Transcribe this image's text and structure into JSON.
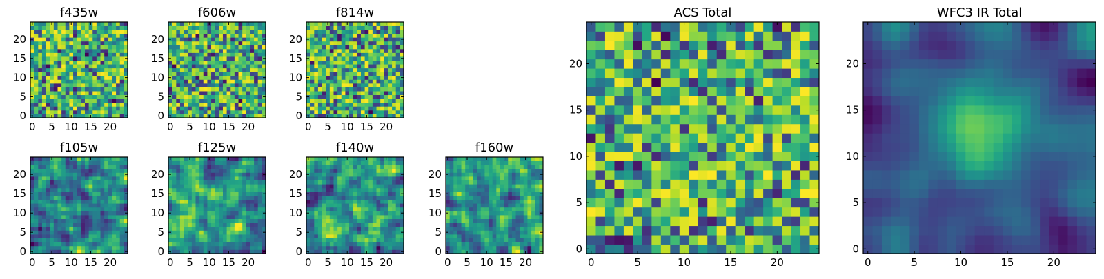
{
  "chart_data": [
    {
      "type": "heatmap",
      "title": "f435w",
      "n": 25,
      "xticks": [
        0,
        5,
        10,
        15,
        20
      ],
      "yticks": [
        0,
        5,
        10,
        15,
        20
      ],
      "xlim": [
        -0.5,
        24.5
      ],
      "ylim": [
        -0.5,
        24.5
      ],
      "pattern": "noise",
      "seed": 11,
      "colormap": "viridis"
    },
    {
      "type": "heatmap",
      "title": "f606w",
      "n": 25,
      "xticks": [
        0,
        5,
        10,
        15,
        20
      ],
      "yticks": [
        0,
        5,
        10,
        15,
        20
      ],
      "xlim": [
        -0.5,
        24.5
      ],
      "ylim": [
        -0.5,
        24.5
      ],
      "pattern": "noise",
      "seed": 23,
      "colormap": "viridis"
    },
    {
      "type": "heatmap",
      "title": "f814w",
      "n": 25,
      "xticks": [
        0,
        5,
        10,
        15,
        20
      ],
      "yticks": [
        0,
        5,
        10,
        15,
        20
      ],
      "xlim": [
        -0.5,
        24.5
      ],
      "ylim": [
        -0.5,
        24.5
      ],
      "pattern": "noise",
      "seed": 37,
      "colormap": "viridis"
    },
    {
      "type": "heatmap",
      "title": "f105w",
      "n": 25,
      "xticks": [
        0,
        5,
        10,
        15,
        20
      ],
      "yticks": [
        0,
        5,
        10,
        15,
        20
      ],
      "xlim": [
        -0.5,
        24.5
      ],
      "ylim": [
        -0.5,
        24.5
      ],
      "pattern": "smooth",
      "seed": 41,
      "colormap": "viridis"
    },
    {
      "type": "heatmap",
      "title": "f125w",
      "n": 25,
      "xticks": [
        0,
        5,
        10,
        15,
        20
      ],
      "yticks": [
        0,
        5,
        10,
        15,
        20
      ],
      "xlim": [
        -0.5,
        24.5
      ],
      "ylim": [
        -0.5,
        24.5
      ],
      "pattern": "smooth",
      "seed": 53,
      "colormap": "viridis"
    },
    {
      "type": "heatmap",
      "title": "f140w",
      "n": 25,
      "xticks": [
        0,
        5,
        10,
        15,
        20
      ],
      "yticks": [
        0,
        5,
        10,
        15,
        20
      ],
      "xlim": [
        -0.5,
        24.5
      ],
      "ylim": [
        -0.5,
        24.5
      ],
      "pattern": "smooth",
      "seed": 67,
      "colormap": "viridis"
    },
    {
      "type": "heatmap",
      "title": "f160w",
      "n": 25,
      "xticks": [
        0,
        5,
        10,
        15,
        20
      ],
      "yticks": [
        0,
        5,
        10,
        15,
        20
      ],
      "xlim": [
        -0.5,
        24.5
      ],
      "ylim": [
        -0.5,
        24.5
      ],
      "pattern": "smooth",
      "seed": 79,
      "colormap": "viridis"
    },
    {
      "type": "heatmap",
      "title": "ACS Total",
      "n": 25,
      "xticks": [
        0,
        5,
        10,
        15,
        20
      ],
      "yticks": [
        0,
        5,
        10,
        15,
        20
      ],
      "xlim": [
        -0.5,
        24.5
      ],
      "ylim": [
        -0.5,
        24.5
      ],
      "pattern": "noise-bright",
      "seed": 97,
      "colormap": "viridis"
    },
    {
      "type": "heatmap",
      "title": "WFC3 IR Total",
      "n": 25,
      "xticks": [
        0,
        5,
        10,
        15,
        20
      ],
      "yticks": [
        0,
        5,
        10,
        15,
        20
      ],
      "xlim": [
        -0.5,
        24.5
      ],
      "ylim": [
        -0.5,
        24.5
      ],
      "pattern": "blob",
      "seed": 113,
      "colormap": "viridis"
    }
  ]
}
